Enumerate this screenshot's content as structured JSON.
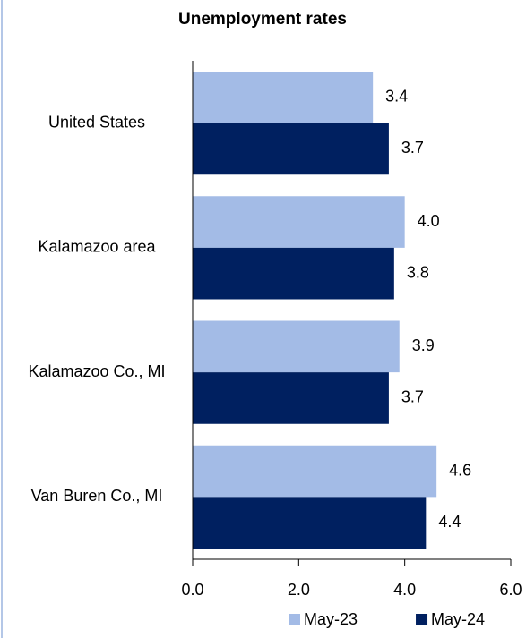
{
  "chart_data": {
    "type": "bar",
    "orientation": "horizontal",
    "title": "Unemployment rates",
    "categories": [
      "United States",
      "Kalamazoo area",
      "Kalamazoo Co., MI",
      "Van Buren Co., MI"
    ],
    "series": [
      {
        "name": "May-23",
        "color": "#a3bbe6",
        "values": [
          3.4,
          4.0,
          3.9,
          4.6
        ],
        "value_labels": [
          "3.4",
          "4.0",
          "3.9",
          "4.6"
        ]
      },
      {
        "name": "May-24",
        "color": "#002060",
        "values": [
          3.7,
          3.8,
          3.7,
          4.4
        ],
        "value_labels": [
          "3.7",
          "3.8",
          "3.7",
          "4.4"
        ]
      }
    ],
    "xlim": [
      0,
      6
    ],
    "xticks": [
      {
        "value": 0,
        "label": "0.0"
      },
      {
        "value": 2,
        "label": "2.0"
      },
      {
        "value": 4,
        "label": "4.0"
      },
      {
        "value": 6,
        "label": "6.0"
      }
    ],
    "grid": false,
    "legend": "bottom"
  }
}
